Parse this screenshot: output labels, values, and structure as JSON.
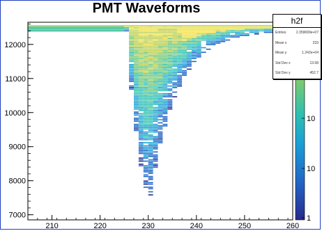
{
  "title": "PMT Waveforms",
  "stats": {
    "name": "h2f",
    "rows": [
      {
        "label": "Entries",
        "value": "2.359699e+07"
      },
      {
        "label": "Mean x",
        "value": "233"
      },
      {
        "label": "Mean y",
        "value": "1.242e+04"
      },
      {
        "label": "Std Dev x",
        "value": "13.58"
      },
      {
        "label": "Std Dev y",
        "value": "452.7"
      }
    ]
  },
  "chart_data": {
    "type": "heatmap",
    "title": "PMT Waveforms",
    "xlabel": "",
    "ylabel": "",
    "xlim": [
      205,
      260
    ],
    "ylim": [
      6850,
      12650
    ],
    "x_ticks": [
      210,
      220,
      230,
      240,
      250,
      260
    ],
    "y_ticks": [
      7000,
      8000,
      9000,
      10000,
      11000,
      12000
    ],
    "baseline_y": [
      12550,
      12400
    ],
    "pulse_start_x": 225,
    "pulse_minimum": {
      "x": 230,
      "y": 7600
    },
    "colorbar_labels": [
      "1",
      "10",
      "10",
      "10"
    ],
    "colormap": [
      "#282a8c",
      "#2166c8",
      "#1aa0d6",
      "#2ec0b0",
      "#70c878",
      "#bcd04c",
      "#f0e040"
    ],
    "log_z": true
  }
}
